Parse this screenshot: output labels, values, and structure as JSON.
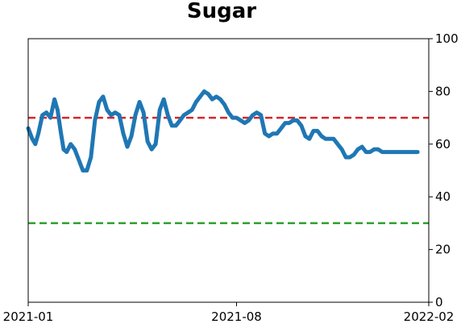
{
  "chart_data": {
    "type": "line",
    "title": "Sugar",
    "xlabel": "",
    "ylabel": "",
    "x_tick_labels": [
      "2021-01",
      "2021-08",
      "2022-02"
    ],
    "y_tick_labels": [
      "0",
      "20",
      "40",
      "60",
      "80",
      "100"
    ],
    "ylim": [
      0,
      100
    ],
    "y_axis_side": "right",
    "grid": false,
    "legend": "none",
    "reference_lines": [
      {
        "value": 70,
        "color": "#d62728",
        "style": "dashed"
      },
      {
        "value": 30,
        "color": "#2ca02c",
        "style": "dashed"
      }
    ],
    "series": [
      {
        "color": "#1f77b4",
        "x": [
          "2021-01-01",
          "2021-01-05",
          "2021-01-08",
          "2021-01-11",
          "2021-01-15",
          "2021-01-19",
          "2021-01-23",
          "2021-01-27",
          "2021-01-30",
          "2021-02-02",
          "2021-02-05",
          "2021-02-08",
          "2021-02-12",
          "2021-02-16",
          "2021-02-20",
          "2021-02-24",
          "2021-02-28",
          "2021-03-04",
          "2021-03-08",
          "2021-03-12",
          "2021-03-16",
          "2021-03-20",
          "2021-03-24",
          "2021-03-28",
          "2021-04-01",
          "2021-04-05",
          "2021-04-09",
          "2021-04-13",
          "2021-04-17",
          "2021-04-21",
          "2021-04-25",
          "2021-04-29",
          "2021-05-03",
          "2021-05-07",
          "2021-05-11",
          "2021-05-15",
          "2021-05-19",
          "2021-05-23",
          "2021-05-27",
          "2021-05-31",
          "2021-06-04",
          "2021-06-08",
          "2021-06-12",
          "2021-06-16",
          "2021-06-20",
          "2021-06-24",
          "2021-06-28",
          "2021-07-02",
          "2021-07-06",
          "2021-07-10",
          "2021-07-14",
          "2021-07-18",
          "2021-07-22",
          "2021-07-26",
          "2021-07-30",
          "2021-08-03",
          "2021-08-07",
          "2021-08-11",
          "2021-08-15",
          "2021-08-19",
          "2021-08-23",
          "2021-08-27",
          "2021-08-31",
          "2021-09-04",
          "2021-09-08",
          "2021-09-12",
          "2021-09-16",
          "2021-09-20",
          "2021-09-24",
          "2021-09-28",
          "2021-10-02",
          "2021-10-06",
          "2021-10-10",
          "2021-10-14",
          "2021-10-18",
          "2021-10-22",
          "2021-10-26",
          "2021-10-30",
          "2021-11-03",
          "2021-11-07",
          "2021-11-11",
          "2021-11-15",
          "2021-11-19",
          "2021-11-23",
          "2021-11-27",
          "2021-12-01",
          "2021-12-05",
          "2021-12-09",
          "2021-12-13",
          "2021-12-17",
          "2021-12-21",
          "2021-12-25",
          "2021-12-29",
          "2022-01-02",
          "2022-01-06",
          "2022-01-10",
          "2022-01-14",
          "2022-01-18",
          "2022-01-21"
        ],
        "y": [
          66,
          62,
          60,
          64,
          71,
          72,
          70,
          77,
          73,
          65,
          58,
          57,
          60,
          58,
          54,
          50,
          50,
          55,
          69,
          76,
          78,
          73,
          71,
          72,
          71,
          64,
          59,
          63,
          71,
          76,
          72,
          61,
          58,
          60,
          73,
          77,
          71,
          67,
          67,
          69,
          71,
          72,
          73,
          76,
          78,
          80,
          79,
          77,
          78,
          77,
          75,
          72,
          70,
          70,
          69,
          68,
          69,
          71,
          72,
          71,
          64,
          63,
          64,
          64,
          66,
          68,
          68,
          69,
          69,
          67,
          63,
          62,
          65,
          65,
          63,
          62,
          62,
          62,
          60,
          58,
          55,
          55,
          56,
          58,
          59,
          57,
          57,
          58,
          58,
          57,
          57,
          57,
          57,
          57,
          57,
          57,
          57,
          57,
          57
        ]
      }
    ]
  }
}
